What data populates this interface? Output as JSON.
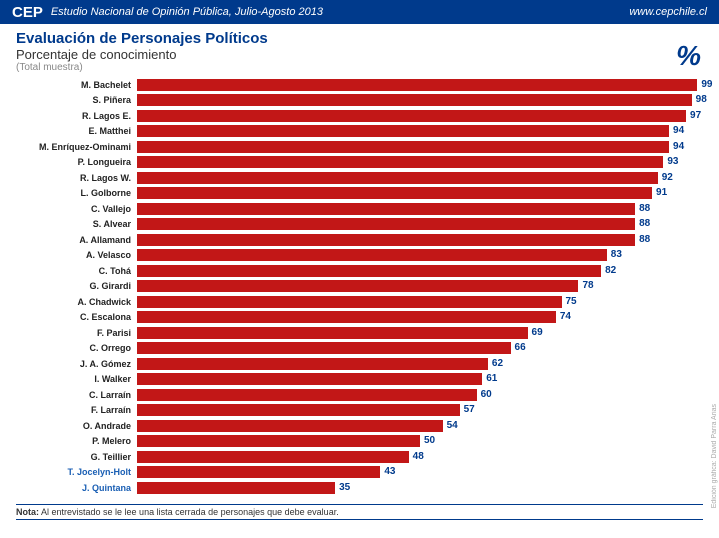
{
  "header": {
    "logo": "CEP",
    "study": "Estudio Nacional de Opinión Pública, Julio-Agosto 2013",
    "url": "www.cepchile.cl"
  },
  "titles": {
    "main": "Evaluación de Personajes Políticos",
    "sub": "Porcentaje de conocimiento",
    "subsub": "(Total muestra)",
    "percent": "%"
  },
  "chart": {
    "type": "bar",
    "bar_color": "#c21717",
    "value_color": "#003a8c",
    "label_fontsize": 9,
    "value_fontsize": 10,
    "max": 100,
    "rows": [
      {
        "label": "M. Bachelet",
        "value": 99,
        "highlight": false
      },
      {
        "label": "S. Piñera",
        "value": 98,
        "highlight": false
      },
      {
        "label": "R. Lagos E.",
        "value": 97,
        "highlight": false
      },
      {
        "label": "E. Matthei",
        "value": 94,
        "highlight": false
      },
      {
        "label": "M. Enríquez-Ominami",
        "value": 94,
        "highlight": false
      },
      {
        "label": "P. Longueira",
        "value": 93,
        "highlight": false
      },
      {
        "label": "R. Lagos W.",
        "value": 92,
        "highlight": false
      },
      {
        "label": "L. Golborne",
        "value": 91,
        "highlight": false
      },
      {
        "label": "C. Vallejo",
        "value": 88,
        "highlight": false
      },
      {
        "label": "S. Alvear",
        "value": 88,
        "highlight": false
      },
      {
        "label": "A. Allamand",
        "value": 88,
        "highlight": false
      },
      {
        "label": "A. Velasco",
        "value": 83,
        "highlight": false
      },
      {
        "label": "C. Tohá",
        "value": 82,
        "highlight": false
      },
      {
        "label": "G. Girardi",
        "value": 78,
        "highlight": false
      },
      {
        "label": "A. Chadwick",
        "value": 75,
        "highlight": false
      },
      {
        "label": "C. Escalona",
        "value": 74,
        "highlight": false
      },
      {
        "label": "F. Parisi",
        "value": 69,
        "highlight": false
      },
      {
        "label": "C. Orrego",
        "value": 66,
        "highlight": false
      },
      {
        "label": "J. A. Gómez",
        "value": 62,
        "highlight": false
      },
      {
        "label": "I. Walker",
        "value": 61,
        "highlight": false
      },
      {
        "label": "C. Larraín",
        "value": 60,
        "highlight": false
      },
      {
        "label": "F. Larraín",
        "value": 57,
        "highlight": false
      },
      {
        "label": "O. Andrade",
        "value": 54,
        "highlight": false
      },
      {
        "label": "P. Melero",
        "value": 50,
        "highlight": false
      },
      {
        "label": "G. Teillier",
        "value": 48,
        "highlight": false
      },
      {
        "label": "T. Jocelyn-Holt",
        "value": 43,
        "highlight": true
      },
      {
        "label": "J. Quintana",
        "value": 35,
        "highlight": true
      }
    ]
  },
  "note": {
    "prefix": "Nota:",
    "text": " Al entrevistado se le lee una lista cerrada de personajes que debe evaluar."
  },
  "credit": "Edición gráfica: David Parra Arias"
}
